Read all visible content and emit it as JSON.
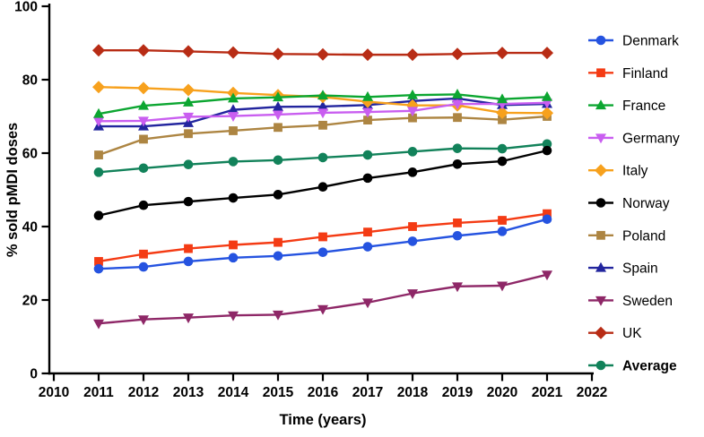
{
  "chart_data": {
    "type": "line",
    "title": "",
    "xlabel": "Time (years)",
    "ylabel": "% sold pMDI doses",
    "xlim": [
      2010,
      2022
    ],
    "ylim": [
      0,
      100
    ],
    "xticks": [
      2010,
      2011,
      2012,
      2013,
      2014,
      2015,
      2016,
      2017,
      2018,
      2019,
      2020,
      2021,
      2022
    ],
    "yticks": [
      0,
      20,
      40,
      60,
      80,
      100
    ],
    "grid": false,
    "legend_position": "right",
    "x": [
      2011,
      2012,
      2013,
      2014,
      2015,
      2016,
      2017,
      2018,
      2019,
      2020,
      2021
    ],
    "series": [
      {
        "name": "Denmark",
        "color": "#2553e0",
        "marker": "circle",
        "bold": false,
        "values": [
          28.5,
          29.0,
          30.5,
          31.5,
          32.0,
          33.0,
          34.5,
          36.0,
          37.5,
          38.7,
          42.0
        ]
      },
      {
        "name": "Finland",
        "color": "#f43b14",
        "marker": "square",
        "bold": false,
        "values": [
          30.5,
          32.5,
          34.0,
          35.0,
          35.7,
          37.2,
          38.5,
          40.0,
          41.0,
          41.7,
          43.5
        ]
      },
      {
        "name": "France",
        "color": "#0ca631",
        "marker": "triangle-up",
        "bold": false,
        "values": [
          70.7,
          72.9,
          73.8,
          74.9,
          75.2,
          75.7,
          75.3,
          75.8,
          76.0,
          74.7,
          75.3
        ]
      },
      {
        "name": "Germany",
        "color": "#c95ef0",
        "marker": "triangle-down",
        "bold": false,
        "values": [
          68.7,
          68.8,
          69.9,
          70.1,
          70.5,
          71.0,
          71.2,
          71.5,
          73.4,
          73.4,
          73.7
        ]
      },
      {
        "name": "Italy",
        "color": "#f7a11d",
        "marker": "diamond",
        "bold": false,
        "values": [
          78.0,
          77.7,
          77.2,
          76.4,
          75.8,
          75.3,
          74.0,
          73.0,
          73.0,
          71.0,
          70.9
        ]
      },
      {
        "name": "Norway",
        "color": "#000000",
        "marker": "circle",
        "bold": false,
        "values": [
          43.0,
          45.8,
          46.8,
          47.8,
          48.7,
          50.8,
          53.2,
          54.8,
          57.0,
          57.8,
          60.7
        ]
      },
      {
        "name": "Poland",
        "color": "#ad8542",
        "marker": "square",
        "bold": false,
        "values": [
          59.5,
          63.8,
          65.3,
          66.1,
          67.0,
          67.6,
          69.0,
          69.6,
          69.7,
          69.1,
          70.0
        ]
      },
      {
        "name": "Spain",
        "color": "#22259e",
        "marker": "triangle-up",
        "bold": false,
        "values": [
          67.3,
          67.3,
          68.2,
          71.8,
          72.6,
          72.7,
          73.1,
          74.2,
          74.9,
          73.1,
          73.4
        ]
      },
      {
        "name": "Sweden",
        "color": "#8e2767",
        "marker": "triangle-down",
        "bold": false,
        "values": [
          13.6,
          14.7,
          15.2,
          15.8,
          16.0,
          17.5,
          19.3,
          21.8,
          23.7,
          23.9,
          26.9
        ]
      },
      {
        "name": "UK",
        "color": "#b82c15",
        "marker": "diamond",
        "bold": false,
        "values": [
          88.0,
          88.0,
          87.7,
          87.4,
          87.0,
          86.9,
          86.8,
          86.8,
          87.0,
          87.3,
          87.3
        ]
      },
      {
        "name": "Average",
        "color": "#12825a",
        "marker": "circle",
        "bold": true,
        "values": [
          54.8,
          55.9,
          56.9,
          57.7,
          58.1,
          58.8,
          59.5,
          60.4,
          61.3,
          61.2,
          62.5
        ]
      }
    ]
  }
}
